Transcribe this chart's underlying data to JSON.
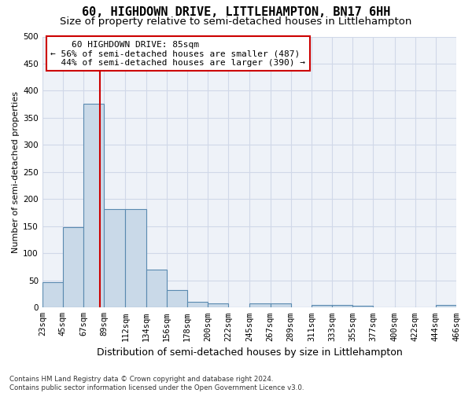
{
  "title": "60, HIGHDOWN DRIVE, LITTLEHAMPTON, BN17 6HH",
  "subtitle": "Size of property relative to semi-detached houses in Littlehampton",
  "xlabel": "Distribution of semi-detached houses by size in Littlehampton",
  "ylabel": "Number of semi-detached properties",
  "bin_edges": [
    23,
    45,
    67,
    89,
    112,
    134,
    156,
    178,
    200,
    222,
    245,
    267,
    289,
    311,
    333,
    355,
    377,
    400,
    422,
    444,
    466
  ],
  "bar_heights": [
    47,
    148,
    376,
    181,
    181,
    70,
    32,
    11,
    7,
    0,
    7,
    7,
    0,
    5,
    5,
    4,
    0,
    0,
    0,
    5
  ],
  "bar_color": "#c9d9e8",
  "bar_edge_color": "#5a8ab0",
  "grid_color": "#d0d8e8",
  "bg_color": "#eef2f8",
  "property_size": 85,
  "property_label": "60 HIGHDOWN DRIVE: 85sqm",
  "pct_smaller": 56,
  "pct_larger": 44,
  "n_smaller": 487,
  "n_larger": 390,
  "vline_color": "#cc0000",
  "title_fontsize": 11,
  "subtitle_fontsize": 9.5,
  "xlabel_fontsize": 9,
  "ylabel_fontsize": 8,
  "tick_fontsize": 7.5,
  "annotation_fontsize": 8,
  "footnote": "Contains HM Land Registry data © Crown copyright and database right 2024.\nContains public sector information licensed under the Open Government Licence v3.0.",
  "ylim": [
    0,
    500
  ],
  "yticks": [
    0,
    50,
    100,
    150,
    200,
    250,
    300,
    350,
    400,
    450,
    500
  ]
}
